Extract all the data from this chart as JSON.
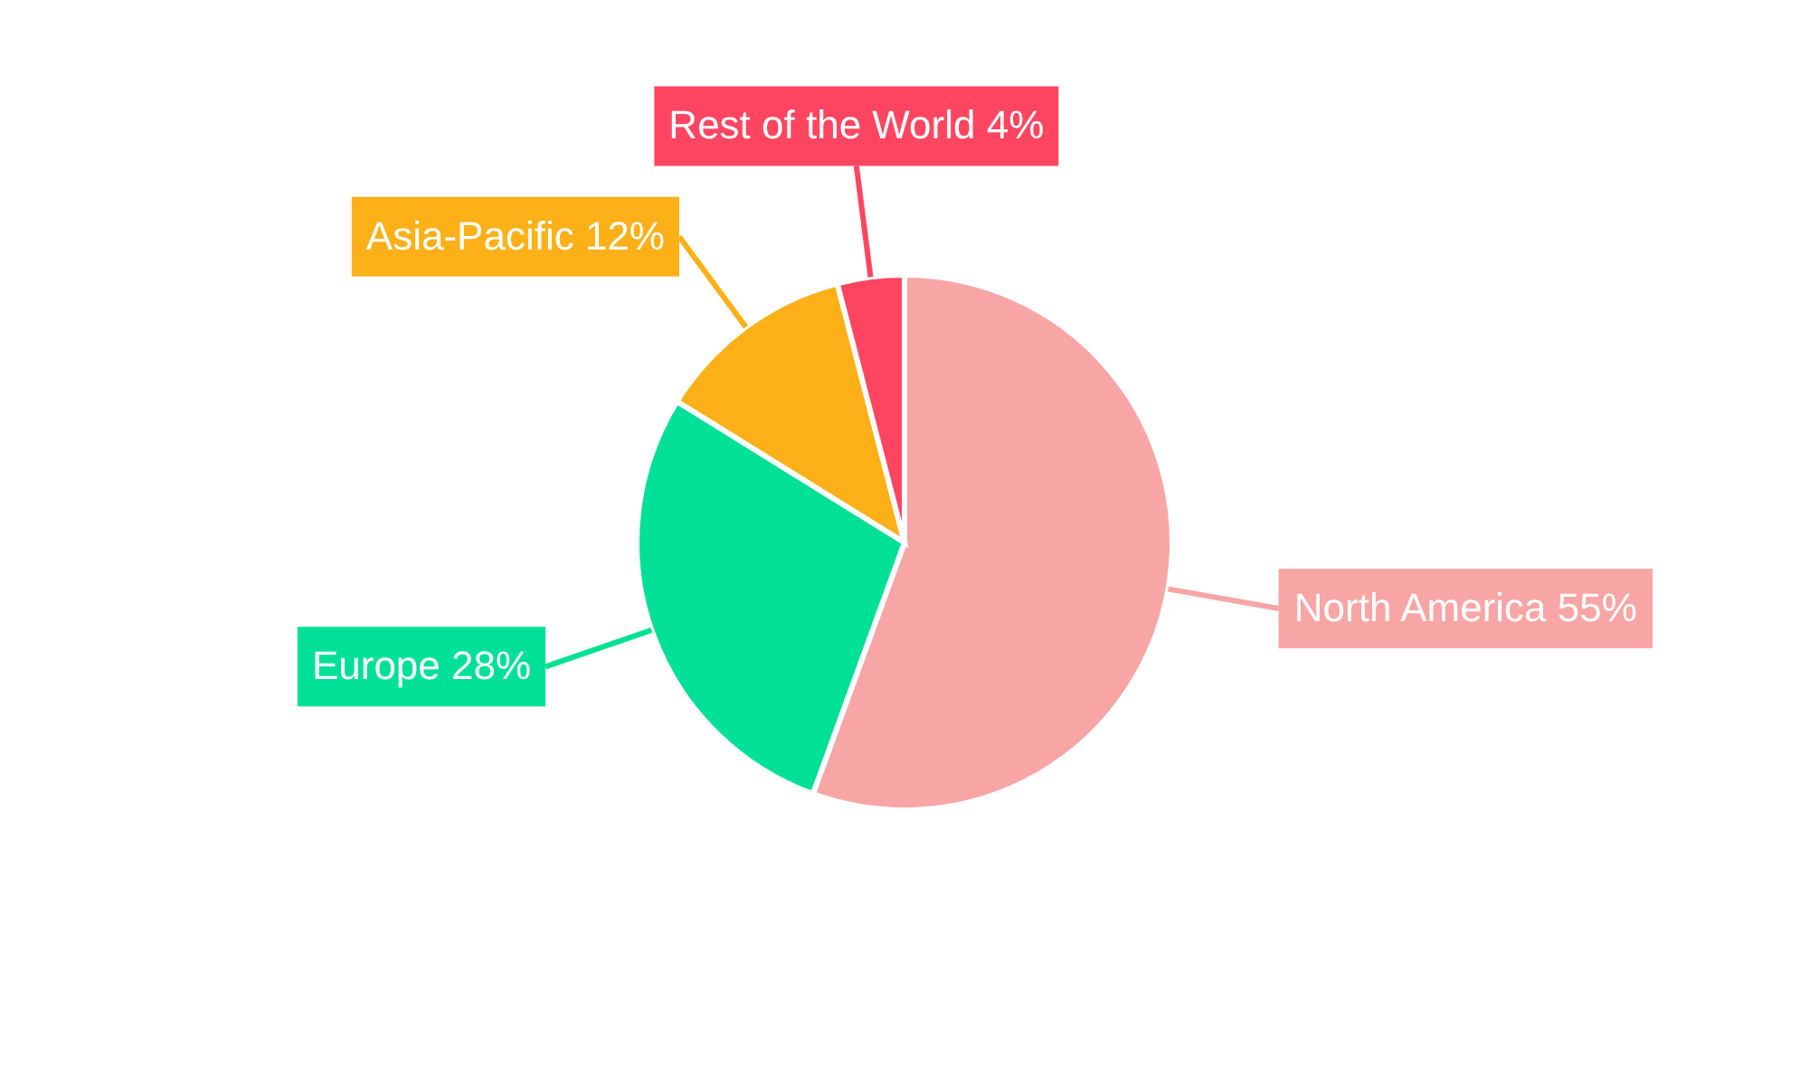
{
  "chart_data": {
    "type": "pie",
    "categories": [
      "North America",
      "Europe",
      "Asia-Pacific",
      "Rest of the World"
    ],
    "values": [
      55,
      28,
      12,
      4
    ],
    "value_labels": [
      "55%",
      "28%",
      "12%",
      "4%"
    ],
    "colors": [
      "#f8a5a5",
      "#00e096",
      "#fdb018",
      "#ff4560"
    ]
  }
}
